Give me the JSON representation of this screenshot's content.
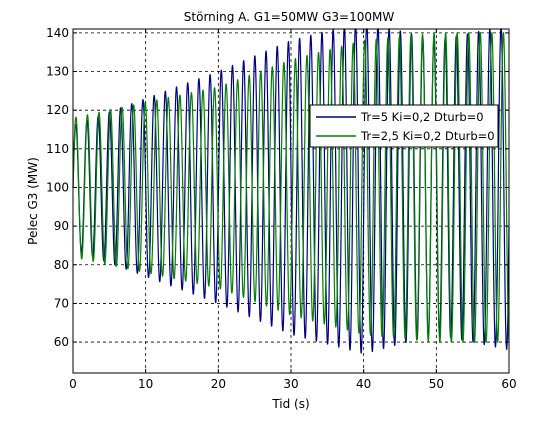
{
  "chart_data": {
    "type": "line",
    "title": "Störning A. G1=50MW G3=100MW",
    "xlabel": "Tid (s)",
    "ylabel": "Pelec G3 (MW)",
    "xlim": [
      0,
      60
    ],
    "ylim": [
      52,
      141
    ],
    "xticks": [
      0,
      10,
      20,
      30,
      40,
      50,
      60
    ],
    "yticks": [
      60,
      70,
      80,
      90,
      100,
      110,
      120,
      130,
      140
    ],
    "grid": true,
    "legend_position": "top-right",
    "series": [
      {
        "name": "Tr=5 Ki=0,2 Dturb=0",
        "color": "#00007f",
        "baseline": 100,
        "period_s": 1.54,
        "amplitude_points": [
          [
            0,
            16
          ],
          [
            10,
            23
          ],
          [
            20,
            30
          ],
          [
            30,
            38
          ],
          [
            40,
            43
          ],
          [
            50,
            38
          ],
          [
            60,
            42
          ]
        ]
      },
      {
        "name": "Tr=2,5 Ki=0,2 Dturb=0",
        "color": "#007f00",
        "baseline": 100,
        "period_s": 1.59,
        "amplitude_points": [
          [
            0,
            18
          ],
          [
            10,
            22
          ],
          [
            20,
            26
          ],
          [
            30,
            33
          ],
          [
            40,
            38
          ],
          [
            50,
            40
          ],
          [
            60,
            40
          ]
        ]
      }
    ]
  }
}
